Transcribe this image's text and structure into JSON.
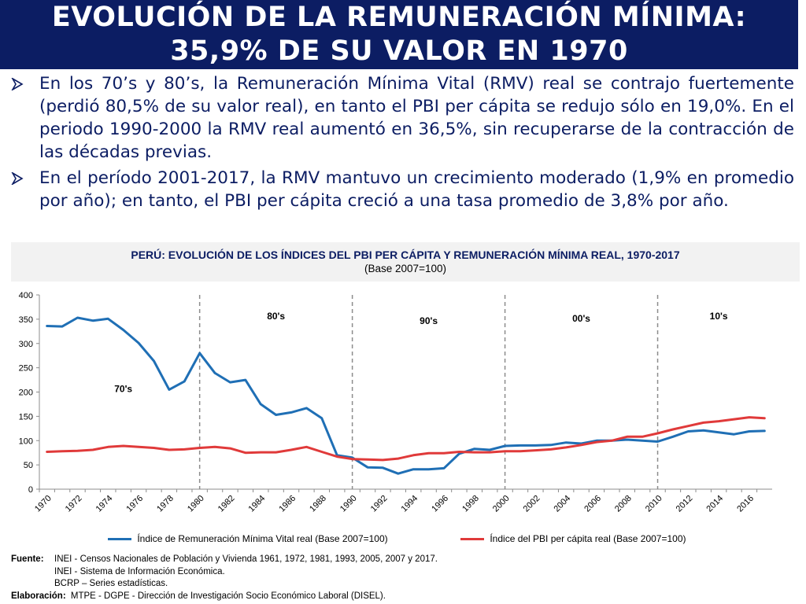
{
  "title": {
    "line1": "EVOLUCIÓN DE LA REMUNERACIÓN MÍNIMA:",
    "line2": "35,9% DE SU VALOR EN 1970"
  },
  "bullets": [
    "En los 70’s y 80’s, la Remuneración Mínima Vital (RMV) real se contrajo fuertemente (perdió 80,5% de su valor real), en tanto el PBI per cápita se redujo sólo en 19,0%. En el periodo 1990-2000 la RMV real aumentó en 36,5%, sin recuperarse de la contracción de las décadas previas.",
    "En el período 2001-2017, la RMV mantuvo un crecimiento moderado (1,9% en promedio por año); en tanto, el PBI per cápita creció a una tasa promedio de 3,8% por año."
  ],
  "chart_header": {
    "title": "PERÚ: EVOLUCIÓN DE LOS ÍNDICES DEL PBI PER CÁPITA Y REMUNERACIÓN MÍNIMA REAL, 1970-2017",
    "subtitle": "(Base 2007=100)"
  },
  "chart_data": {
    "type": "line",
    "title": "PERÚ: EVOLUCIÓN DE LOS ÍNDICES DEL PBI PER CÁPITA Y REMUNERACIÓN MÍNIMA REAL, 1970-2017",
    "subtitle": "(Base 2007=100)",
    "xlabel": "",
    "ylabel": "",
    "ylim": [
      0,
      400
    ],
    "yticks": [
      0,
      50,
      100,
      150,
      200,
      250,
      300,
      350,
      400
    ],
    "x": [
      1970,
      1971,
      1972,
      1973,
      1974,
      1975,
      1976,
      1977,
      1978,
      1979,
      1980,
      1981,
      1982,
      1983,
      1984,
      1985,
      1986,
      1987,
      1988,
      1989,
      1990,
      1991,
      1992,
      1993,
      1994,
      1995,
      1996,
      1997,
      1998,
      1999,
      2000,
      2001,
      2002,
      2003,
      2004,
      2005,
      2006,
      2007,
      2008,
      2009,
      2010,
      2011,
      2012,
      2013,
      2014,
      2015,
      2016,
      2017
    ],
    "x_tick_labels": [
      "1970",
      "1972",
      "1974",
      "1976",
      "1978",
      "1980",
      "1982",
      "1984",
      "1986",
      "1988",
      "1990",
      "1992",
      "1994",
      "1996",
      "1998",
      "2000",
      "2002",
      "2004",
      "2006",
      "2008",
      "2010",
      "2012",
      "2014",
      "2016"
    ],
    "series": [
      {
        "name": "Índice de Remuneración Mínima Vital real (Base 2007=100)",
        "color": "#1f6fb5",
        "values": [
          336,
          335,
          353,
          347,
          351,
          328,
          301,
          264,
          205,
          222,
          280,
          239,
          220,
          225,
          175,
          153,
          158,
          167,
          146,
          70,
          65,
          45,
          44,
          32,
          41,
          41,
          43,
          73,
          83,
          81,
          89,
          90,
          90,
          91,
          96,
          94,
          100,
          100,
          102,
          100,
          98,
          108,
          119,
          121,
          117,
          113,
          119,
          120
        ]
      },
      {
        "name": "Índice del PBI per cápita real (Base 2007=100)",
        "color": "#e03a3a",
        "values": [
          77,
          78,
          79,
          81,
          87,
          89,
          87,
          85,
          81,
          82,
          85,
          87,
          84,
          75,
          76,
          76,
          81,
          87,
          77,
          67,
          62,
          61,
          60,
          63,
          70,
          74,
          74,
          77,
          76,
          76,
          78,
          78,
          80,
          82,
          86,
          91,
          97,
          100,
          108,
          108,
          115,
          123,
          130,
          137,
          140,
          144,
          148,
          146
        ]
      }
    ],
    "annotations": [
      {
        "text": "70's",
        "x": 1975,
        "y": 200
      },
      {
        "text": "80's",
        "x": 1985,
        "y": 350
      },
      {
        "text": "90's",
        "x": 1995,
        "y": 340
      },
      {
        "text": "00's",
        "x": 2005,
        "y": 345
      },
      {
        "text": "10's",
        "x": 2014,
        "y": 350
      }
    ],
    "decade_dividers": [
      1980,
      1990,
      2000,
      2010
    ],
    "legend_position": "bottom"
  },
  "source": {
    "label": "Fuente:",
    "lines": [
      "INEI - Censos Nacionales de Población y Vivienda 1961, 1972, 1981, 1993, 2005, 2007 y 2017.",
      "INEI - Sistema de Información Económica.",
      "BCRP – Series estadísticas."
    ],
    "elaboration_label": "Elaboración:",
    "elaboration": "MTPE - DGPE - Dirección de Investigación Socio Económico Laboral (DISEL)."
  }
}
